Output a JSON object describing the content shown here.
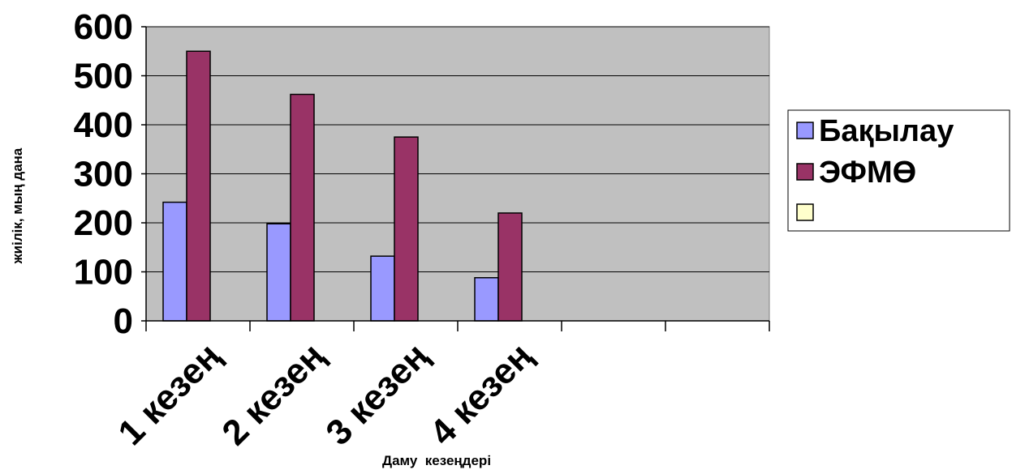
{
  "chart_data": {
    "type": "bar",
    "categories": [
      "1 кезең",
      "2 кезең",
      "3 кезең",
      "4 кезең",
      "",
      ""
    ],
    "series": [
      {
        "name": "Бақылау",
        "color": "#9999ff",
        "values": [
          242,
          198,
          132,
          88,
          null,
          null
        ]
      },
      {
        "name": "ЭФМӨ",
        "color": "#993366",
        "values": [
          550,
          462,
          375,
          220,
          null,
          null
        ]
      },
      {
        "name": "",
        "color": "#ffffcc",
        "values": [
          null,
          null,
          null,
          null,
          null,
          null
        ]
      }
    ],
    "xlabel": "Даму  кезеңдері",
    "ylabel": "жиілік, мың дана",
    "ylim": [
      0,
      600
    ],
    "yticks": [
      0,
      100,
      200,
      300,
      400,
      500,
      600
    ],
    "grid": true,
    "plot_background": "#c0c0c0",
    "legend_position": "right"
  }
}
